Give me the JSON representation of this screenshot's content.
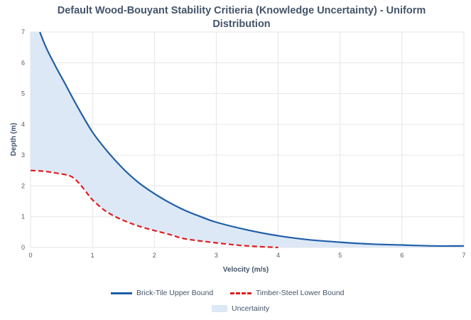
{
  "title_line1": "Default Wood-Bouyant Stability Critieria (Knowledge Uncertainty) - Uniform",
  "title_line2": "Distribution",
  "colors": {
    "upper": "#1f5fa8",
    "lower": "#e01e1e",
    "area": "#dce8f5",
    "grid": "#e6e6e6"
  },
  "chart_data": {
    "type": "line",
    "title": "Default Wood-Bouyant Stability Critieria (Knowledge Uncertainty) - Uniform Distribution",
    "xlabel": "Velocity (m/s)",
    "ylabel": "Depth (m)",
    "xlim": [
      0,
      7
    ],
    "ylim": [
      0,
      7
    ],
    "xticks": [
      "0",
      "1",
      "2",
      "3",
      "4",
      "5",
      "6",
      "7"
    ],
    "yticks": [
      "0",
      "1",
      "2",
      "3",
      "4",
      "5",
      "6",
      "7"
    ],
    "grid": true,
    "legend_position": "bottom",
    "series": [
      {
        "name": "Brick-Tile Upper Bound",
        "style": "solid",
        "x": [
          0.15,
          0.25,
          0.4,
          0.55,
          0.75,
          1.0,
          1.25,
          1.5,
          1.75,
          2.0,
          2.25,
          2.5,
          2.75,
          3.0,
          3.5,
          4.0,
          4.5,
          5.0,
          5.5,
          6.0,
          6.5,
          7.0
        ],
        "y": [
          7.0,
          6.5,
          5.9,
          5.35,
          4.6,
          3.75,
          3.1,
          2.55,
          2.1,
          1.75,
          1.45,
          1.2,
          1.0,
          0.82,
          0.57,
          0.38,
          0.25,
          0.17,
          0.11,
          0.08,
          0.05,
          0.05
        ]
      },
      {
        "name": "Timber-Steel Lower Bound",
        "style": "dashed",
        "x": [
          0.0,
          0.2,
          0.4,
          0.6,
          0.7,
          0.8,
          0.9,
          1.0,
          1.2,
          1.4,
          1.6,
          1.8,
          2.0,
          2.25,
          2.5,
          3.0,
          3.5,
          4.0
        ],
        "y": [
          2.5,
          2.48,
          2.42,
          2.35,
          2.25,
          2.05,
          1.8,
          1.55,
          1.2,
          0.97,
          0.8,
          0.66,
          0.55,
          0.42,
          0.28,
          0.15,
          0.05,
          0.0
        ]
      },
      {
        "name": "Uncertainty",
        "style": "area"
      }
    ]
  }
}
